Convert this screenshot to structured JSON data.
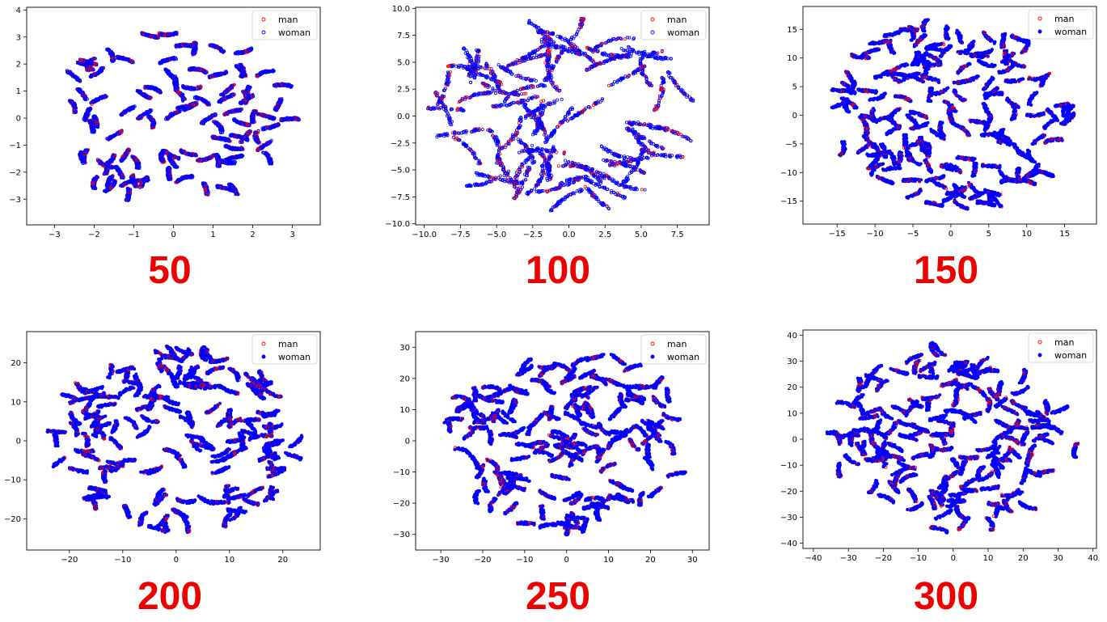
{
  "chart_data": [
    {
      "type": "scatter",
      "caption": "50",
      "xlim": [
        -3.7,
        3.7
      ],
      "ylim": [
        -3.95,
        4.1
      ],
      "xticks": [
        -3,
        -2,
        -1,
        0,
        1,
        2,
        3
      ],
      "yticks": [
        -3,
        -2,
        -1,
        0,
        1,
        2,
        3,
        4
      ],
      "tick_labels_x": [
        "−3",
        "−2",
        "−1",
        "0",
        "1",
        "2",
        "3"
      ],
      "tick_labels_y": [
        "−3",
        "−2",
        "−1",
        "0",
        "1",
        "2",
        "3",
        "4"
      ],
      "cloud": {
        "cx": 0,
        "cy": 0,
        "rx": 3.3,
        "ry": 3.45,
        "density": "dense"
      },
      "legend": {
        "placement": "top-right"
      },
      "series": [
        {
          "name": "man",
          "color": "#ff0000",
          "marker": "open-circle"
        },
        {
          "name": "woman",
          "color": "#0000ff",
          "marker": "open-circle"
        }
      ]
    },
    {
      "type": "scatter",
      "caption": "100",
      "xlim": [
        -10.6,
        9.7
      ],
      "ylim": [
        -10.1,
        10.1
      ],
      "xticks": [
        -10,
        -7.5,
        -5,
        -2.5,
        0,
        2.5,
        5,
        7.5
      ],
      "yticks": [
        -10,
        -7.5,
        -5,
        -2.5,
        0,
        2.5,
        5,
        7.5,
        10
      ],
      "tick_labels_x": [
        "−10.0",
        "−7.5",
        "−5.0",
        "−2.5",
        "0.0",
        "2.5",
        "5.0",
        "7.5"
      ],
      "tick_labels_y": [
        "−10.0",
        "−7.5",
        "−5.0",
        "−2.5",
        "0.0",
        "2.5",
        "5.0",
        "7.5",
        "10.0"
      ],
      "cloud": {
        "cx": -0.5,
        "cy": 0,
        "rx": 9.3,
        "ry": 9.2,
        "density": "streaks"
      },
      "legend": {
        "placement": "top-right"
      },
      "series": [
        {
          "name": "man",
          "color": "#ff0000",
          "marker": "open-circle"
        },
        {
          "name": "woman",
          "color": "#0000ff",
          "marker": "open-circle"
        }
      ]
    },
    {
      "type": "scatter",
      "caption": "150",
      "xlim": [
        -19.5,
        19.2
      ],
      "ylim": [
        -19.0,
        19.0
      ],
      "xticks": [
        -15,
        -10,
        -5,
        0,
        5,
        10,
        15
      ],
      "yticks": [
        -15,
        -10,
        -5,
        0,
        5,
        10,
        15
      ],
      "tick_labels_x": [
        "−15",
        "−10",
        "−5",
        "0",
        "5",
        "10",
        "15"
      ],
      "tick_labels_y": [
        "−15",
        "−10",
        "−5",
        "0",
        "5",
        "10",
        "15"
      ],
      "cloud": {
        "cx": 0,
        "cy": 0,
        "rx": 17.5,
        "ry": 17.5,
        "density": "clusters"
      },
      "legend": {
        "placement": "top-right"
      },
      "series": [
        {
          "name": "man",
          "color": "#ff0000",
          "marker": "open-circle"
        },
        {
          "name": "woman",
          "color": "#0000ff",
          "marker": "filled-circle"
        }
      ]
    },
    {
      "type": "scatter",
      "caption": "200",
      "xlim": [
        -28,
        27
      ],
      "ylim": [
        -28,
        28
      ],
      "xticks": [
        -20,
        -10,
        0,
        10,
        20
      ],
      "yticks": [
        -20,
        -10,
        0,
        10,
        20
      ],
      "tick_labels_x": [
        "−20",
        "−10",
        "0",
        "10",
        "20"
      ],
      "tick_labels_y": [
        "−20",
        "−10",
        "0",
        "10",
        "20"
      ],
      "cloud": {
        "cx": 0,
        "cy": 0,
        "rx": 25,
        "ry": 25,
        "density": "clusters"
      },
      "legend": {
        "placement": "top-right"
      },
      "series": [
        {
          "name": "man",
          "color": "#ff0000",
          "marker": "open-circle"
        },
        {
          "name": "woman",
          "color": "#0000ff",
          "marker": "filled-circle"
        }
      ]
    },
    {
      "type": "scatter",
      "caption": "250",
      "xlim": [
        -36,
        34
      ],
      "ylim": [
        -35,
        35
      ],
      "xticks": [
        -30,
        -20,
        -10,
        0,
        10,
        20,
        30
      ],
      "yticks": [
        -30,
        -20,
        -10,
        0,
        10,
        20,
        30
      ],
      "tick_labels_x": [
        "−30",
        "−20",
        "−10",
        "0",
        "10",
        "20",
        "30"
      ],
      "tick_labels_y": [
        "−30",
        "−20",
        "−10",
        "0",
        "10",
        "20",
        "30"
      ],
      "cloud": {
        "cx": 0,
        "cy": 0,
        "rx": 31.5,
        "ry": 31.5,
        "density": "clusters"
      },
      "legend": {
        "placement": "top-right"
      },
      "series": [
        {
          "name": "man",
          "color": "#ff0000",
          "marker": "open-circle"
        },
        {
          "name": "woman",
          "color": "#0000ff",
          "marker": "filled-circle"
        }
      ]
    },
    {
      "type": "scatter",
      "caption": "300",
      "xlim": [
        -43,
        41
      ],
      "ylim": [
        -42,
        42
      ],
      "xticks": [
        -40,
        -30,
        -20,
        -10,
        0,
        10,
        20,
        30,
        40
      ],
      "yticks": [
        -40,
        -30,
        -20,
        -10,
        0,
        10,
        20,
        30,
        40
      ],
      "tick_labels_x": [
        "−40",
        "−30",
        "−20",
        "−10",
        "0",
        "10",
        "20",
        "30",
        "40"
      ],
      "tick_labels_y": [
        "−40",
        "−30",
        "−20",
        "−10",
        "0",
        "10",
        "20",
        "30",
        "40"
      ],
      "cloud": {
        "cx": 0,
        "cy": 0,
        "rx": 38,
        "ry": 38,
        "density": "clusters"
      },
      "legend": {
        "placement": "top-right"
      },
      "series": [
        {
          "name": "man",
          "color": "#ff0000",
          "marker": "open-circle"
        },
        {
          "name": "woman",
          "color": "#0000ff",
          "marker": "filled-circle"
        }
      ]
    }
  ],
  "caption_color": "#ee0000"
}
